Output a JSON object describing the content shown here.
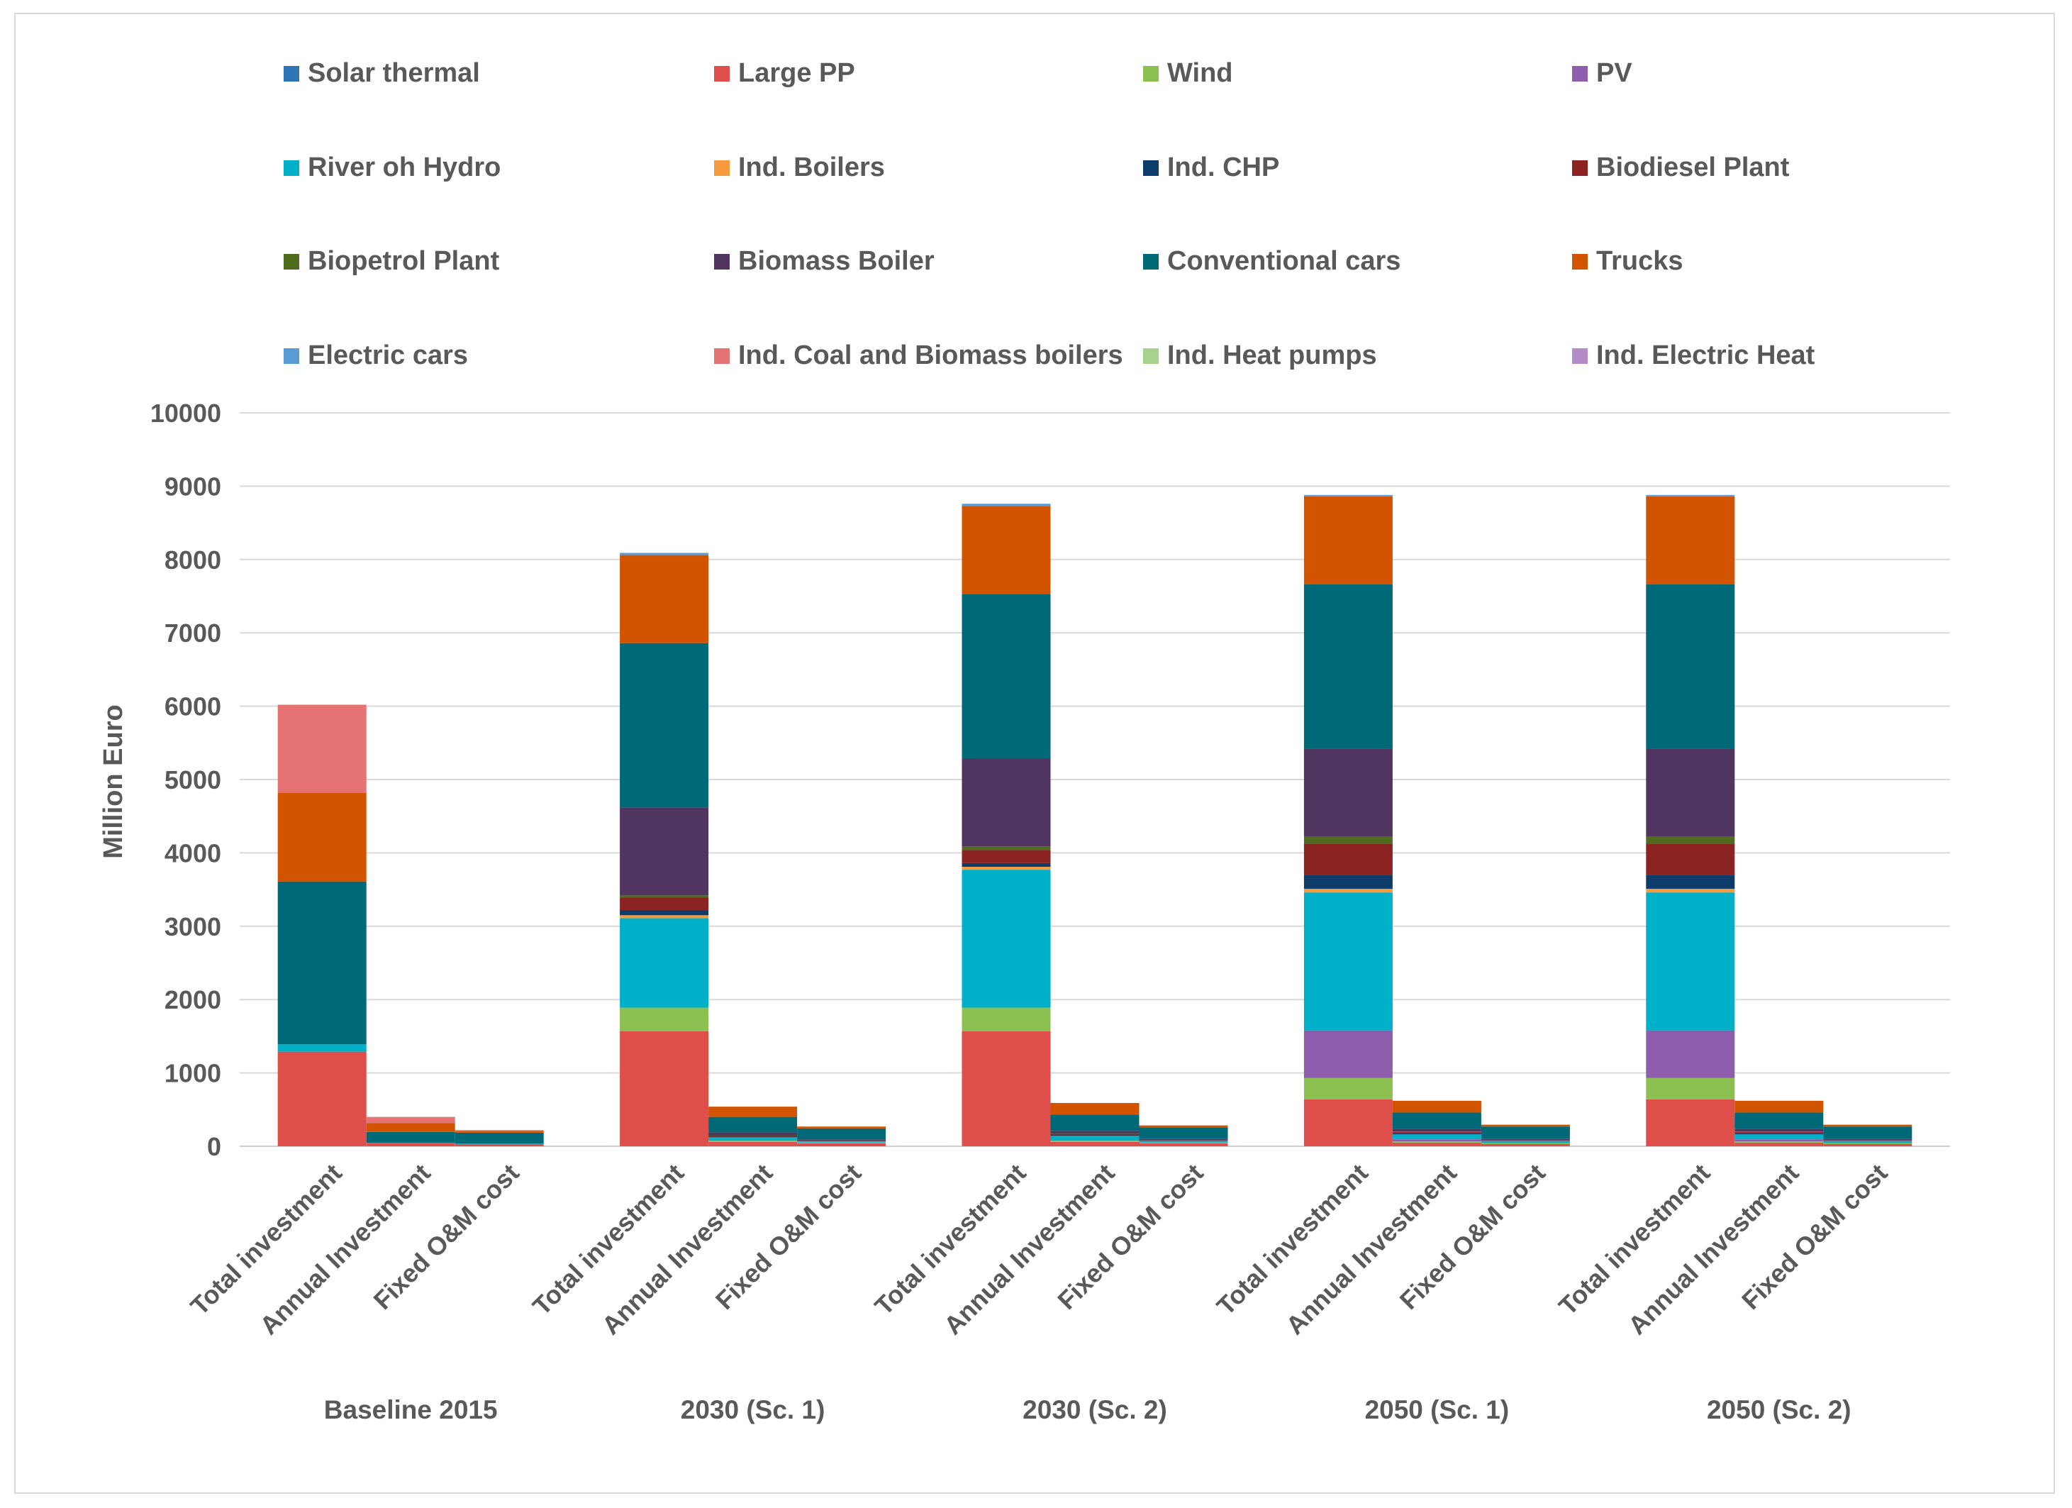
{
  "chart_data": {
    "type": "stacked-bar",
    "title": "",
    "xlabel": "",
    "ylabel": "Million Euro",
    "ylim": [
      0,
      10000
    ],
    "yticks": [
      0,
      1000,
      2000,
      3000,
      4000,
      5000,
      6000,
      7000,
      8000,
      9000,
      10000
    ],
    "grid": true,
    "legend_position": "top",
    "groups": [
      "Baseline 2015",
      "2030 (Sc. 1)",
      "2030 (Sc. 2)",
      "2050 (Sc. 1)",
      "2050 (Sc. 2)"
    ],
    "bar_labels": [
      "Total investment",
      "Annual Investment",
      "Fixed O&M cost"
    ],
    "series": [
      {
        "name": "Solar thermal",
        "color": "#2E75B6",
        "values": [
          [
            0,
            0,
            0
          ],
          [
            0,
            0,
            0
          ],
          [
            0,
            0,
            0
          ],
          [
            0,
            0,
            0
          ],
          [
            0,
            0,
            0
          ]
        ]
      },
      {
        "name": "Large PP",
        "color": "#DE4E4B",
        "values": [
          [
            1290,
            40,
            30
          ],
          [
            1570,
            60,
            40
          ],
          [
            1570,
            60,
            40
          ],
          [
            640,
            50,
            30
          ],
          [
            640,
            50,
            30
          ]
        ]
      },
      {
        "name": "Wind",
        "color": "#8CC152",
        "values": [
          [
            0,
            0,
            0
          ],
          [
            320,
            15,
            10
          ],
          [
            320,
            15,
            10
          ],
          [
            290,
            15,
            10
          ],
          [
            290,
            15,
            10
          ]
        ]
      },
      {
        "name": "PV",
        "color": "#8E5DAE",
        "values": [
          [
            0,
            0,
            0
          ],
          [
            0,
            0,
            0
          ],
          [
            0,
            0,
            0
          ],
          [
            650,
            30,
            10
          ],
          [
            650,
            30,
            10
          ]
        ]
      },
      {
        "name": "River oh Hydro",
        "color": "#00AFC8",
        "values": [
          [
            100,
            5,
            5
          ],
          [
            1220,
            40,
            15
          ],
          [
            1880,
            60,
            20
          ],
          [
            1880,
            60,
            20
          ],
          [
            1880,
            60,
            20
          ]
        ]
      },
      {
        "name": "Ind. Boilers",
        "color": "#F79A3E",
        "values": [
          [
            0,
            0,
            0
          ],
          [
            40,
            5,
            2
          ],
          [
            40,
            5,
            2
          ],
          [
            50,
            5,
            2
          ],
          [
            50,
            5,
            2
          ]
        ]
      },
      {
        "name": "Ind. CHP",
        "color": "#0D3C6B",
        "values": [
          [
            0,
            0,
            0
          ],
          [
            70,
            10,
            5
          ],
          [
            50,
            10,
            5
          ],
          [
            190,
            15,
            5
          ],
          [
            190,
            15,
            5
          ]
        ]
      },
      {
        "name": "Biodiesel Plant",
        "color": "#8B2323",
        "values": [
          [
            0,
            0,
            0
          ],
          [
            170,
            15,
            5
          ],
          [
            180,
            15,
            5
          ],
          [
            420,
            20,
            5
          ],
          [
            420,
            20,
            5
          ]
        ]
      },
      {
        "name": "Biopetrol Plant",
        "color": "#4E6B20",
        "values": [
          [
            0,
            0,
            0
          ],
          [
            30,
            5,
            2
          ],
          [
            50,
            5,
            2
          ],
          [
            100,
            5,
            2
          ],
          [
            100,
            5,
            2
          ]
        ]
      },
      {
        "name": "Biomass Boiler",
        "color": "#4F3560",
        "values": [
          [
            0,
            0,
            0
          ],
          [
            1200,
            40,
            15
          ],
          [
            1200,
            40,
            15
          ],
          [
            1200,
            40,
            15
          ],
          [
            1200,
            40,
            15
          ]
        ]
      },
      {
        "name": "Conventional cars",
        "color": "#006978",
        "values": [
          [
            2220,
            150,
            150
          ],
          [
            2240,
            210,
            150
          ],
          [
            2240,
            220,
            160
          ],
          [
            2240,
            220,
            170
          ],
          [
            2240,
            220,
            170
          ]
        ]
      },
      {
        "name": "Trucks",
        "color": "#D35400",
        "values": [
          [
            1210,
            120,
            25
          ],
          [
            1200,
            140,
            25
          ],
          [
            1200,
            160,
            25
          ],
          [
            1200,
            160,
            25
          ],
          [
            1200,
            160,
            25
          ]
        ]
      },
      {
        "name": "Electric cars",
        "color": "#5B9BD5",
        "values": [
          [
            0,
            0,
            0
          ],
          [
            30,
            0,
            0
          ],
          [
            30,
            0,
            0
          ],
          [
            20,
            0,
            0
          ],
          [
            20,
            0,
            0
          ]
        ]
      },
      {
        "name": "Ind. Coal and Biomass boilers",
        "color": "#E57373",
        "values": [
          [
            1200,
            85,
            10
          ],
          [
            0,
            0,
            0
          ],
          [
            0,
            0,
            0
          ],
          [
            0,
            0,
            0
          ],
          [
            0,
            0,
            0
          ]
        ]
      },
      {
        "name": "Ind. Heat pumps",
        "color": "#A9D18E",
        "values": [
          [
            0,
            0,
            0
          ],
          [
            0,
            0,
            0
          ],
          [
            0,
            0,
            0
          ],
          [
            0,
            0,
            0
          ],
          [
            0,
            0,
            0
          ]
        ]
      },
      {
        "name": "Ind. Electric Heat",
        "color": "#B38CC7",
        "values": [
          [
            0,
            0,
            0
          ],
          [
            0,
            0,
            0
          ],
          [
            0,
            0,
            0
          ],
          [
            0,
            0,
            0
          ],
          [
            0,
            0,
            0
          ]
        ]
      }
    ]
  }
}
